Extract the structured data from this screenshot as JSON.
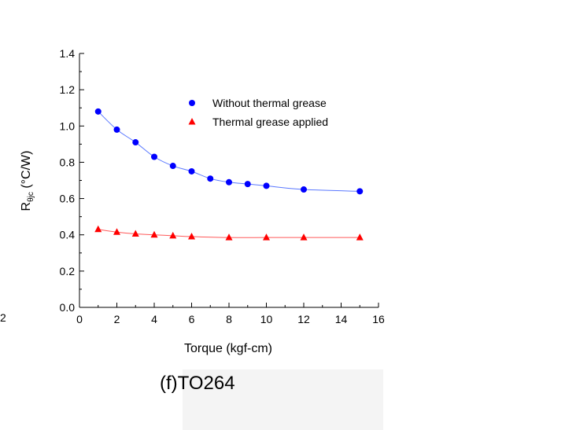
{
  "chart_data": {
    "type": "scatter",
    "xlabel": "Torque (kgf-cm)",
    "ylabel_main": "R",
    "ylabel_sub": "θjc",
    "ylabel_unit": " (°C/W)",
    "xlim": [
      0,
      16
    ],
    "ylim": [
      0,
      1.4
    ],
    "x_ticks": [
      0,
      2,
      4,
      6,
      8,
      10,
      12,
      14,
      16
    ],
    "y_ticks": [
      "0.0",
      "0.2",
      "0.4",
      "0.6",
      "0.8",
      "1.0",
      "1.2",
      "1.4"
    ],
    "x_tick_labels": [
      "0",
      "2",
      "4",
      "6",
      "8",
      "10",
      "12",
      "14",
      "16"
    ],
    "grid": false,
    "legend_position": "top-right",
    "series": [
      {
        "name": "Without thermal grease",
        "marker": "circle",
        "color": "#0000ff",
        "line_color": "#5a78ff",
        "x": [
          1,
          2,
          3,
          4,
          5,
          6,
          7,
          8,
          9,
          10,
          12,
          15
        ],
        "y": [
          1.08,
          0.98,
          0.91,
          0.83,
          0.78,
          0.75,
          0.71,
          0.69,
          0.68,
          0.67,
          0.65,
          0.64
        ]
      },
      {
        "name": "Thermal grease applied",
        "marker": "triangle",
        "color": "#ff0000",
        "line_color": "#ff5a5a",
        "x": [
          1,
          2,
          3,
          4,
          5,
          6,
          8,
          10,
          12,
          15
        ],
        "y": [
          0.43,
          0.415,
          0.405,
          0.4,
          0.395,
          0.39,
          0.385,
          0.385,
          0.385,
          0.385
        ]
      }
    ]
  },
  "caption": "(f)TO264",
  "edge_text": "2"
}
